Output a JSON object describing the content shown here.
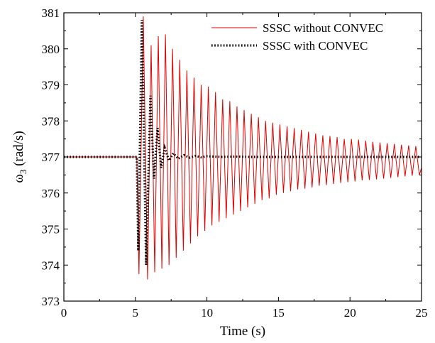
{
  "chart_data": {
    "type": "line",
    "xlabel": "Time (s)",
    "ylabel": {
      "main": "ω",
      "sub": "3",
      "rest": " (rad/s)"
    },
    "xlim": [
      0,
      25
    ],
    "ylim": [
      373,
      381
    ],
    "xticks": [
      "0",
      "5",
      "10",
      "15",
      "20",
      "25"
    ],
    "yticks": [
      "373",
      "374",
      "375",
      "376",
      "377",
      "378",
      "379",
      "380",
      "381"
    ],
    "grid": false,
    "legend_position": "top-right",
    "series": [
      {
        "name": "SSSC without CONVEC",
        "color": "#e00000",
        "style": "solid",
        "points": [
          [
            0,
            377
          ],
          [
            5.1,
            377
          ],
          [
            5.25,
            373.75
          ],
          [
            5.55,
            380.9
          ],
          [
            5.85,
            373.6
          ],
          [
            6.1,
            380.1
          ],
          [
            6.35,
            373.8
          ],
          [
            6.6,
            380.35
          ],
          [
            6.85,
            373.9
          ],
          [
            7.1,
            380.4
          ],
          [
            7.35,
            374.0
          ],
          [
            7.6,
            380.0
          ],
          [
            7.85,
            374.2
          ],
          [
            8.1,
            379.7
          ],
          [
            8.35,
            374.4
          ],
          [
            8.6,
            379.4
          ],
          [
            8.85,
            374.6
          ],
          [
            9.1,
            379.2
          ],
          [
            9.35,
            374.8
          ],
          [
            9.6,
            379.0
          ],
          [
            9.85,
            374.95
          ],
          [
            10.1,
            378.95
          ],
          [
            10.35,
            375.1
          ],
          [
            10.6,
            378.8
          ],
          [
            10.85,
            375.2
          ],
          [
            11.1,
            378.6
          ],
          [
            11.35,
            375.3
          ],
          [
            11.6,
            378.55
          ],
          [
            11.85,
            375.4
          ],
          [
            12.1,
            378.4
          ],
          [
            12.35,
            375.5
          ],
          [
            12.6,
            378.3
          ],
          [
            12.85,
            375.6
          ],
          [
            13.1,
            378.2
          ],
          [
            13.35,
            375.7
          ],
          [
            13.6,
            378.1
          ],
          [
            13.85,
            375.8
          ],
          [
            14.1,
            378.0
          ],
          [
            14.35,
            375.85
          ],
          [
            14.6,
            377.95
          ],
          [
            14.85,
            375.95
          ],
          [
            15.1,
            377.9
          ],
          [
            15.35,
            376.0
          ],
          [
            15.6,
            377.85
          ],
          [
            15.85,
            376.05
          ],
          [
            16.1,
            377.8
          ],
          [
            16.35,
            376.1
          ],
          [
            16.6,
            377.75
          ],
          [
            16.85,
            376.12
          ],
          [
            17.1,
            377.7
          ],
          [
            17.35,
            376.15
          ],
          [
            17.6,
            377.65
          ],
          [
            17.85,
            376.2
          ],
          [
            18.1,
            377.6
          ],
          [
            18.35,
            376.22
          ],
          [
            18.6,
            377.58
          ],
          [
            18.85,
            376.25
          ],
          [
            19.1,
            377.55
          ],
          [
            19.35,
            376.28
          ],
          [
            19.6,
            377.5
          ],
          [
            19.85,
            376.3
          ],
          [
            20.1,
            377.5
          ],
          [
            20.35,
            376.32
          ],
          [
            20.6,
            377.48
          ],
          [
            20.85,
            376.35
          ],
          [
            21.1,
            377.45
          ],
          [
            21.35,
            376.36
          ],
          [
            21.6,
            377.42
          ],
          [
            21.85,
            376.38
          ],
          [
            22.1,
            377.4
          ],
          [
            22.35,
            376.4
          ],
          [
            22.6,
            377.38
          ],
          [
            22.85,
            376.42
          ],
          [
            23.1,
            377.36
          ],
          [
            23.35,
            376.44
          ],
          [
            23.6,
            377.34
          ],
          [
            23.85,
            376.46
          ],
          [
            24.1,
            377.32
          ],
          [
            24.35,
            376.48
          ],
          [
            24.6,
            377.3
          ],
          [
            24.85,
            376.5
          ],
          [
            25,
            376.7
          ]
        ]
      },
      {
        "name": "SSSC with CONVEC",
        "color": "#000000",
        "style": "dotted",
        "points": [
          [
            0,
            377
          ],
          [
            5.1,
            377
          ],
          [
            5.2,
            374.4
          ],
          [
            5.45,
            380.8
          ],
          [
            5.75,
            374.0
          ],
          [
            6.05,
            378.7
          ],
          [
            6.3,
            376.4
          ],
          [
            6.55,
            377.8
          ],
          [
            6.8,
            376.7
          ],
          [
            7.05,
            377.25
          ],
          [
            7.35,
            376.9
          ],
          [
            7.65,
            377.1
          ],
          [
            8.0,
            376.95
          ],
          [
            8.4,
            377.05
          ],
          [
            8.8,
            376.98
          ],
          [
            9.2,
            377.03
          ],
          [
            9.6,
            376.99
          ],
          [
            10.0,
            377.02
          ],
          [
            11,
            377.0
          ],
          [
            12,
            377.01
          ],
          [
            13,
            377.0
          ],
          [
            15,
            377.0
          ],
          [
            18,
            377.0
          ],
          [
            21,
            377.0
          ],
          [
            25,
            377.0
          ]
        ]
      }
    ]
  }
}
